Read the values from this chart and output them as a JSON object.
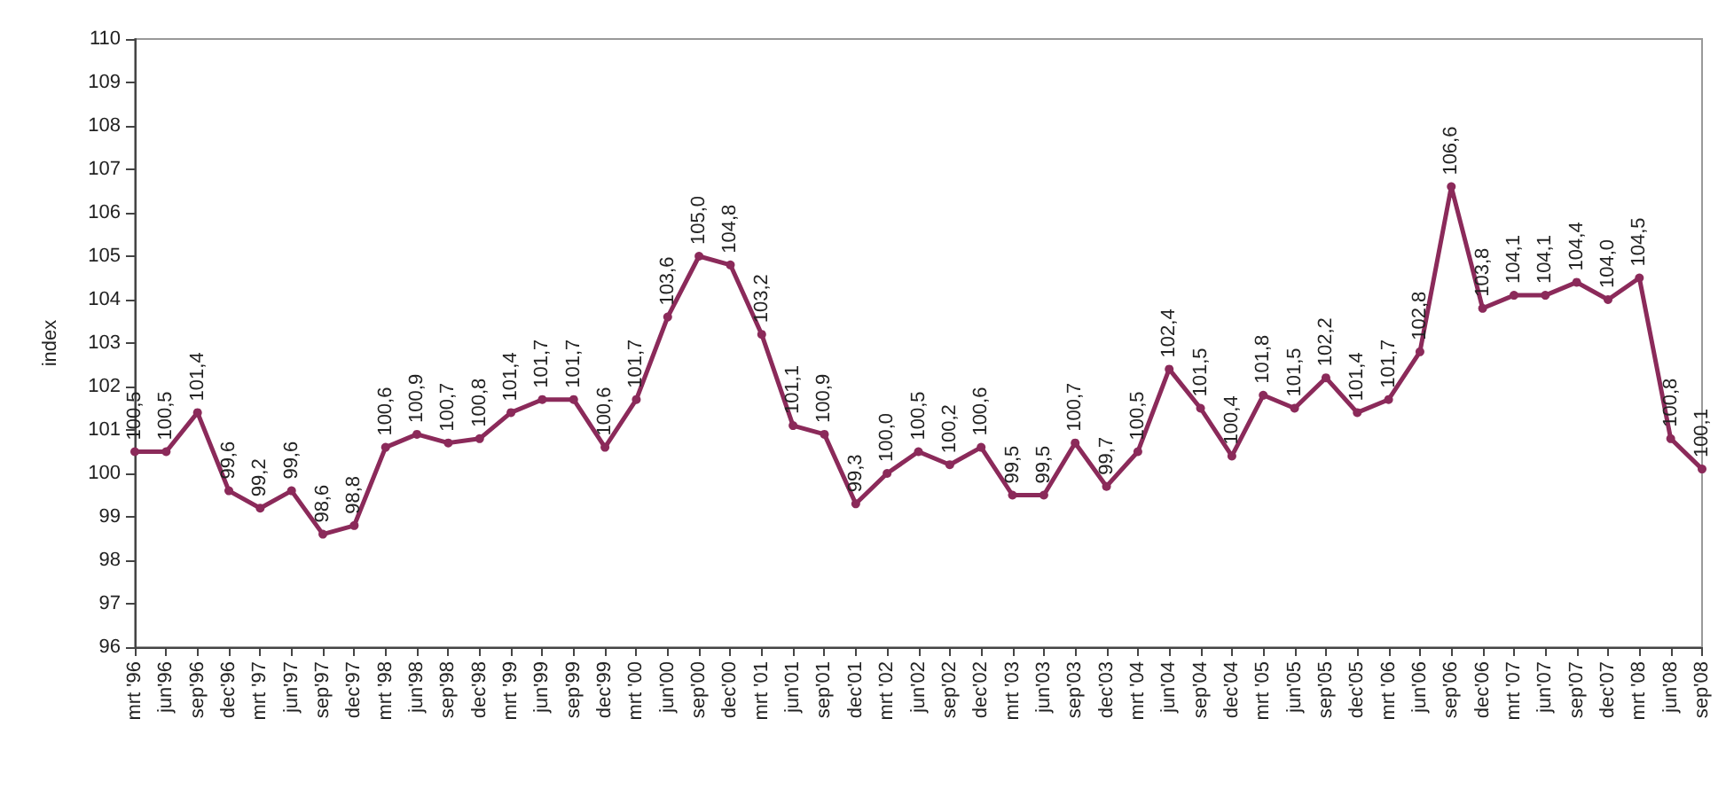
{
  "chart_data": {
    "type": "line",
    "ylabel": "index",
    "categories": [
      "mrt '96",
      "jun'96",
      "sep'96",
      "dec'96",
      "mrt '97",
      "jun'97",
      "sep'97",
      "dec'97",
      "mrt '98",
      "jun'98",
      "sep'98",
      "dec'98",
      "mrt '99",
      "jun'99",
      "sep'99",
      "dec'99",
      "mrt '00",
      "jun'00",
      "sep'00",
      "dec'00",
      "mrt '01",
      "jun'01",
      "sep'01",
      "dec'01",
      "mrt '02",
      "jun'02",
      "sep'02",
      "dec'02",
      "mrt '03",
      "jun'03",
      "sep'03",
      "dec'03",
      "mrt '04",
      "jun'04",
      "sep'04",
      "dec'04",
      "mrt '05",
      "jun'05",
      "sep'05",
      "dec'05",
      "mrt '06",
      "jun'06",
      "sep'06",
      "dec'06",
      "mrt '07",
      "jun'07",
      "sep'07",
      "dec'07",
      "mrt '08",
      "jun'08",
      "sep'08"
    ],
    "series": [
      {
        "color": "#8b2a5a",
        "value_labels": [
          "100,5",
          "100,5",
          "101,4",
          "99,6",
          "99,2",
          "99,6",
          "98,6",
          "98,8",
          "100,6",
          "100,9",
          "100,7",
          "100,8",
          "101,4",
          "101,7",
          "101,7",
          "100,6",
          "101,7",
          "103,6",
          "105,0",
          "104,8",
          "103,2",
          "101,1",
          "100,9",
          "99,3",
          "100,0",
          "100,5",
          "100,2",
          "100,6",
          "99,5",
          "99,5",
          "100,7",
          "99,7",
          "100,5",
          "102,4",
          "101,5",
          "100,4",
          "101,8",
          "101,5",
          "102,2",
          "101,4",
          "101,7",
          "102,8",
          "106,6",
          "103,8",
          "104,1",
          "104,1",
          "104,4",
          "104,0",
          "104,5",
          "100,8",
          "100,1"
        ],
        "values": [
          100.5,
          100.5,
          101.4,
          99.6,
          99.2,
          99.6,
          98.6,
          98.8,
          100.6,
          100.9,
          100.7,
          100.8,
          101.4,
          101.7,
          101.7,
          100.6,
          101.7,
          103.6,
          105.0,
          104.8,
          103.2,
          101.1,
          100.9,
          99.3,
          100.0,
          100.5,
          100.2,
          100.6,
          99.5,
          99.5,
          100.7,
          99.7,
          100.5,
          102.4,
          101.5,
          100.4,
          101.8,
          101.5,
          102.2,
          101.4,
          101.7,
          102.8,
          106.6,
          103.8,
          104.1,
          104.1,
          104.4,
          104.0,
          104.5,
          100.8,
          100.1
        ]
      }
    ],
    "ylim": [
      96,
      110
    ],
    "yticks": [
      96,
      97,
      98,
      99,
      100,
      101,
      102,
      103,
      104,
      105,
      106,
      107,
      108,
      109,
      110
    ],
    "marker": "circle",
    "grid": false
  }
}
